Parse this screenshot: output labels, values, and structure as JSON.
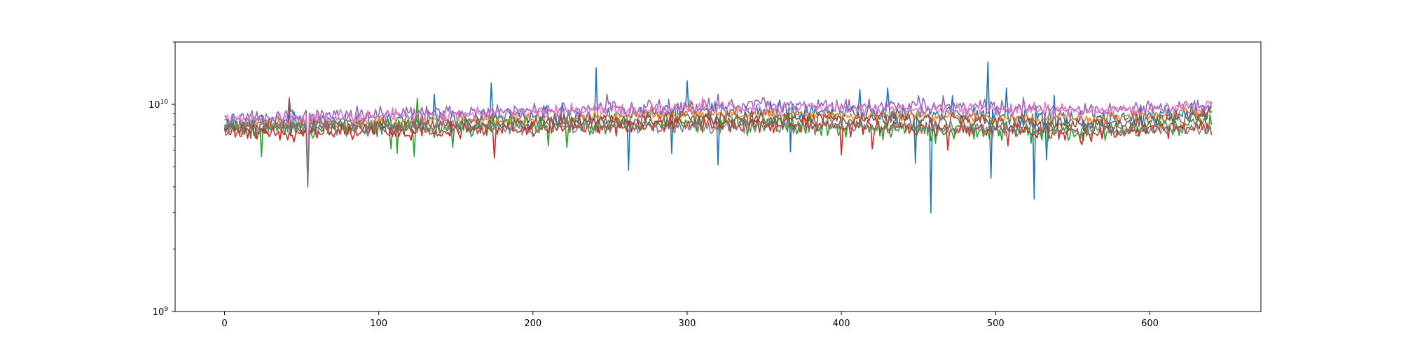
{
  "chart_data": {
    "type": "line",
    "title": "",
    "xlabel": "",
    "ylabel": "",
    "xlim": [
      -32,
      672
    ],
    "ylim": [
      1000000000,
      20000000000
    ],
    "yscale": "log",
    "grid": false,
    "x_ticks": [
      0,
      100,
      200,
      300,
      400,
      500,
      600
    ],
    "x_tick_labels": [
      "0",
      "100",
      "200",
      "300",
      "400",
      "500",
      "600"
    ],
    "y_ticks": [
      1000000000,
      10000000000
    ],
    "y_tick_labels": [
      {
        "base": "10",
        "exp": "9"
      },
      {
        "base": "10",
        "exp": "10"
      }
    ],
    "x_count": 641,
    "series": [
      {
        "color": "#1f77b4",
        "trend": [
          [
            0,
            8100000000.0
          ],
          [
            160,
            8600000000.0
          ],
          [
            320,
            9300000000.0
          ],
          [
            480,
            8900000000.0
          ],
          [
            560,
            8400000000.0
          ],
          [
            640,
            9200000000.0
          ]
        ],
        "noise": 0.055,
        "seed": 1,
        "spikes": [
          [
            54,
            4200000000.0
          ],
          [
            136,
            11200000000.0
          ],
          [
            173,
            12700000000.0
          ],
          [
            241,
            15000000000.0
          ],
          [
            262,
            4800000000.0
          ],
          [
            290,
            5800000000.0
          ],
          [
            300,
            13000000000.0
          ],
          [
            320,
            5100000000.0
          ],
          [
            360,
            10500000000.0
          ],
          [
            367,
            5900000000.0
          ],
          [
            412,
            11800000000.0
          ],
          [
            430,
            12000000000.0
          ],
          [
            448,
            5200000000.0
          ],
          [
            458,
            3000000000.0
          ],
          [
            472,
            11000000000.0
          ],
          [
            495,
            16000000000.0
          ],
          [
            497,
            4400000000.0
          ],
          [
            507,
            12000000000.0
          ],
          [
            525,
            3500000000.0
          ],
          [
            533,
            5400000000.0
          ],
          [
            538,
            11000000000.0
          ]
        ]
      },
      {
        "color": "#ff7f0e",
        "trend": [
          [
            0,
            7900000000.0
          ],
          [
            160,
            8400000000.0
          ],
          [
            320,
            9000000000.0
          ],
          [
            480,
            8700000000.0
          ],
          [
            560,
            8500000000.0
          ],
          [
            640,
            9300000000.0
          ]
        ],
        "noise": 0.03,
        "seed": 2,
        "spikes": [
          [
            54,
            4500000000.0
          ],
          [
            302,
            10500000000.0
          ]
        ]
      },
      {
        "color": "#2ca02c",
        "trend": [
          [
            0,
            7600000000.0
          ],
          [
            160,
            7800000000.0
          ],
          [
            320,
            8200000000.0
          ],
          [
            480,
            7500000000.0
          ],
          [
            560,
            7400000000.0
          ],
          [
            640,
            8100000000.0
          ]
        ],
        "noise": 0.05,
        "seed": 3,
        "spikes": [
          [
            24,
            5600000000.0
          ],
          [
            54,
            4500000000.0
          ],
          [
            108,
            6100000000.0
          ],
          [
            112,
            5800000000.0
          ],
          [
            123,
            5600000000.0
          ],
          [
            125,
            10700000000.0
          ],
          [
            148,
            6200000000.0
          ],
          [
            210,
            6300000000.0
          ],
          [
            222,
            6200000000.0
          ]
        ]
      },
      {
        "color": "#d62728",
        "trend": [
          [
            0,
            7300000000.0
          ],
          [
            160,
            7500000000.0
          ],
          [
            320,
            8100000000.0
          ],
          [
            480,
            7600000000.0
          ],
          [
            560,
            7300000000.0
          ],
          [
            640,
            7800000000.0
          ]
        ],
        "noise": 0.045,
        "seed": 4,
        "spikes": [
          [
            54,
            4100000000.0
          ],
          [
            175,
            5500000000.0
          ],
          [
            400,
            5700000000.0
          ],
          [
            420,
            6100000000.0
          ],
          [
            469,
            6000000000.0
          ],
          [
            508,
            6300000000.0
          ],
          [
            556,
            6400000000.0
          ]
        ]
      },
      {
        "color": "#9467bd",
        "trend": [
          [
            0,
            8600000000.0
          ],
          [
            160,
            9200000000.0
          ],
          [
            320,
            9900000000.0
          ],
          [
            480,
            9800000000.0
          ],
          [
            560,
            9400000000.0
          ],
          [
            640,
            9900000000.0
          ]
        ],
        "noise": 0.04,
        "seed": 5,
        "spikes": [
          [
            54,
            4300000000.0
          ],
          [
            42,
            10800000000.0
          ],
          [
            248,
            11200000000.0
          ],
          [
            320,
            11200000000.0
          ],
          [
            450,
            11000000000.0
          ],
          [
            466,
            11000000000.0
          ],
          [
            518,
            10800000000.0
          ]
        ]
      },
      {
        "color": "#8c564b",
        "trend": [
          [
            0,
            7600000000.0
          ],
          [
            160,
            8000000000.0
          ],
          [
            320,
            8600000000.0
          ],
          [
            480,
            8400000000.0
          ],
          [
            560,
            7900000000.0
          ],
          [
            640,
            8900000000.0
          ]
        ],
        "noise": 0.045,
        "seed": 6,
        "spikes": [
          [
            54,
            4000000000.0
          ],
          [
            42,
            10600000000.0
          ]
        ]
      },
      {
        "color": "#e377c2",
        "trend": [
          [
            0,
            8400000000.0
          ],
          [
            160,
            9000000000.0
          ],
          [
            320,
            9600000000.0
          ],
          [
            480,
            9500000000.0
          ],
          [
            560,
            9300000000.0
          ],
          [
            640,
            9700000000.0
          ]
        ],
        "noise": 0.035,
        "seed": 7,
        "spikes": [
          [
            54,
            4400000000.0
          ],
          [
            310,
            10800000000.0
          ]
        ]
      },
      {
        "color": "#7f7f7f",
        "trend": [
          [
            0,
            7800000000.0
          ],
          [
            160,
            7700000000.0
          ],
          [
            320,
            7900000000.0
          ],
          [
            480,
            7700000000.0
          ],
          [
            560,
            7500000000.0
          ],
          [
            640,
            7600000000.0
          ]
        ],
        "noise": 0.04,
        "seed": 8,
        "spikes": [
          [
            54,
            4200000000.0
          ]
        ]
      }
    ]
  }
}
